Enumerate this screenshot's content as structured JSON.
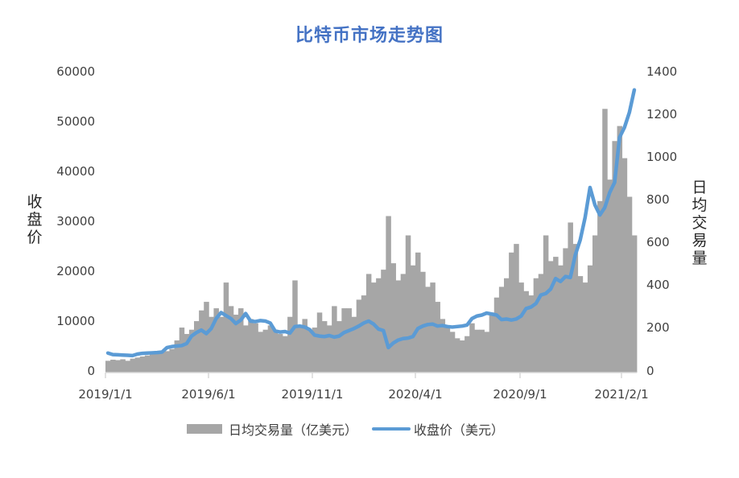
{
  "title": "比特币市场走势图",
  "colors": {
    "title": "#4472c4",
    "volume_bar": "#a6a6a6",
    "price_line": "#5b9bd5",
    "axis": "#d9d9d9",
    "text": "#404040"
  },
  "axes": {
    "left": {
      "title": "收盘价",
      "ticks": [
        "60000",
        "50000",
        "40000",
        "30000",
        "20000",
        "10000",
        "0"
      ]
    },
    "right": {
      "title": "日均交易量",
      "ticks": [
        "1400",
        "1200",
        "1000",
        "800",
        "600",
        "400",
        "200",
        "0"
      ]
    },
    "x": {
      "ticks": [
        "2019/1/1",
        "2019/6/1",
        "2019/11/1",
        "2020/4/1",
        "2020/9/1",
        "2021/2/1"
      ]
    }
  },
  "legend": {
    "volume_label": "日均交易量（亿美元）",
    "price_label": "收盘价（美元）"
  },
  "chart_data": {
    "type": "bar+line (dual axis)",
    "title": "比特币市场走势图",
    "xlabel": "",
    "ylabel_left": "收盘价",
    "ylabel_right": "日均交易量",
    "ylim_left": [
      0,
      60000
    ],
    "ylim_right": [
      0,
      1400
    ],
    "x_ticks": [
      "2019/1/1",
      "2019/6/1",
      "2019/11/1",
      "2020/4/1",
      "2020/9/1",
      "2021/2/1"
    ],
    "grid": false,
    "legend_position": "bottom",
    "x_start": "2019-01-01",
    "x_step_days": 7,
    "series": [
      {
        "name": "日均交易量（亿美元）",
        "type": "bar",
        "axis": "right",
        "values": [
          55,
          60,
          58,
          62,
          55,
          65,
          70,
          75,
          80,
          85,
          90,
          95,
          100,
          110,
          150,
          210,
          180,
          200,
          240,
          290,
          330,
          260,
          300,
          260,
          420,
          310,
          270,
          300,
          220,
          250,
          230,
          190,
          200,
          220,
          200,
          180,
          170,
          260,
          430,
          220,
          250,
          200,
          210,
          280,
          240,
          220,
          310,
          240,
          300,
          300,
          260,
          340,
          360,
          460,
          420,
          440,
          480,
          730,
          510,
          430,
          460,
          640,
          500,
          560,
          470,
          400,
          420,
          330,
          250,
          220,
          190,
          160,
          150,
          170,
          230,
          200,
          200,
          190,
          280,
          350,
          400,
          440,
          560,
          600,
          420,
          380,
          360,
          440,
          460,
          640,
          520,
          540,
          500,
          580,
          700,
          600,
          450,
          420,
          500,
          640,
          800,
          1230,
          900,
          1080,
          1150,
          1000,
          820,
          640
        ]
      },
      {
        "name": "收盘价（美元）",
        "type": "line",
        "axis": "left",
        "values": [
          3900,
          3600,
          3550,
          3500,
          3450,
          3400,
          3700,
          3850,
          3900,
          3950,
          4000,
          4100,
          5000,
          5200,
          5300,
          5400,
          5800,
          7300,
          8000,
          8500,
          7800,
          8800,
          10800,
          12000,
          11400,
          10800,
          9800,
          10500,
          11800,
          10300,
          10200,
          10400,
          10300,
          9900,
          8300,
          8100,
          8200,
          7900,
          9200,
          9300,
          9100,
          8600,
          7500,
          7300,
          7200,
          7400,
          7100,
          7300,
          8000,
          8400,
          8800,
          9300,
          9900,
          10300,
          9700,
          8700,
          8400,
          5000,
          5900,
          6500,
          6800,
          6900,
          7200,
          8800,
          9300,
          9600,
          9700,
          9300,
          9400,
          9200,
          9100,
          9200,
          9300,
          9500,
          10800,
          11300,
          11500,
          11900,
          11700,
          11500,
          10600,
          10700,
          10500,
          10700,
          11300,
          12800,
          13100,
          13800,
          15500,
          15800,
          16700,
          18800,
          18200,
          19200,
          19000,
          23500,
          26500,
          31000,
          37000,
          33500,
          31500,
          33000,
          36000,
          38000,
          47000,
          49000,
          52000,
          56500
        ]
      }
    ]
  }
}
